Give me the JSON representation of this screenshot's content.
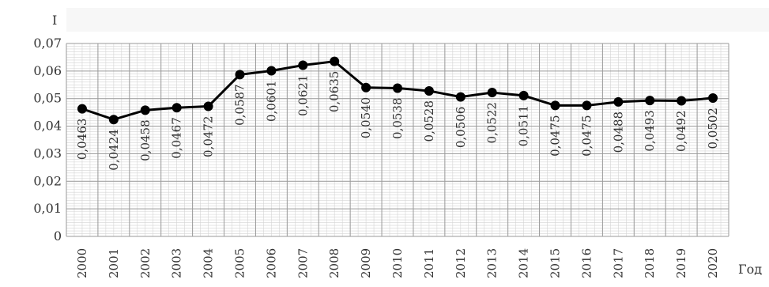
{
  "chart_data": {
    "type": "line",
    "title": "",
    "xlabel": "Год",
    "ylabel": "I",
    "ylim": [
      0,
      0.07
    ],
    "yticks": [
      "0",
      "0,01",
      "0,02",
      "0,03",
      "0,04",
      "0,05",
      "0,06",
      "0,07"
    ],
    "grid": true,
    "categories": [
      "2000",
      "2001",
      "2002",
      "2003",
      "2004",
      "2005",
      "2006",
      "2007",
      "2008",
      "2009",
      "2010",
      "2011",
      "2012",
      "2013",
      "2014",
      "2015",
      "2016",
      "2017",
      "2018",
      "2019",
      "2020"
    ],
    "series": [
      {
        "values": [
          0.0463,
          0.0424,
          0.0458,
          0.0467,
          0.0472,
          0.0587,
          0.0601,
          0.0621,
          0.0635,
          0.054,
          0.0538,
          0.0528,
          0.0506,
          0.0522,
          0.0511,
          0.0475,
          0.0475,
          0.0488,
          0.0493,
          0.0492,
          0.0502
        ],
        "labels": [
          "0,0463",
          "0,0424",
          "0,0458",
          "0,0467",
          "0,0472",
          "0,0587",
          "0,0601",
          "0,0621",
          "0,0635",
          "0,0540",
          "0,0538",
          "0,0528",
          "0,0506",
          "0,0522",
          "0,0511",
          "0,0475",
          "0,0475",
          "0,0488",
          "0,0493",
          "0,0492",
          "0,0502"
        ],
        "color": "#000000"
      }
    ]
  }
}
